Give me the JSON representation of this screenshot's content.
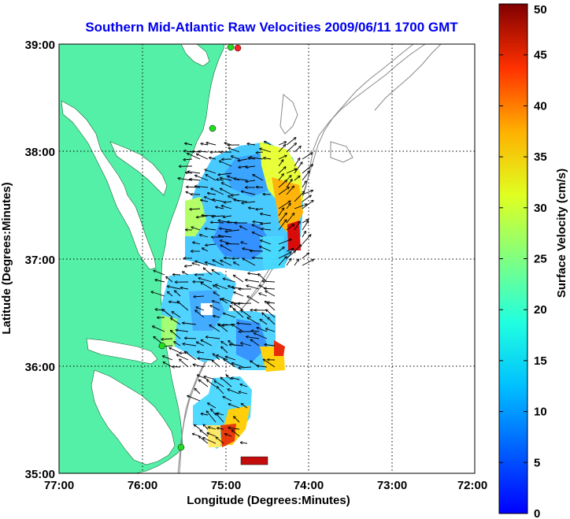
{
  "figure": {
    "title": "Southern Mid-Atlantic Raw Velocities 2009/06/11 1700 GMT",
    "xlabel": "Longitude (Degrees:Minutes)",
    "ylabel": "Latitude (Degrees:Minutes)",
    "x_ticks": [
      "77:00",
      "76:00",
      "75:00",
      "74:00",
      "73:00",
      "72:00"
    ],
    "y_ticks": [
      "39:00",
      "38:00",
      "37:00",
      "36:00",
      "35:00"
    ],
    "colorbar": {
      "label": "Surface Velocity (cm/s)",
      "ticks": [
        "50",
        "45",
        "40",
        "35",
        "30",
        "25",
        "20",
        "15",
        "10",
        "5",
        "0"
      ],
      "range": [
        0,
        50
      ],
      "colormap": "jet"
    }
  },
  "map": {
    "lon_range": [
      -77,
      -72
    ],
    "lat_range": [
      35,
      39
    ],
    "land_color": "#55f0a8",
    "water_color": "#ffffff",
    "grid": "dotted",
    "site_marker_color": "#22dd22",
    "site_marker_alt_color": "#ff2222"
  }
}
